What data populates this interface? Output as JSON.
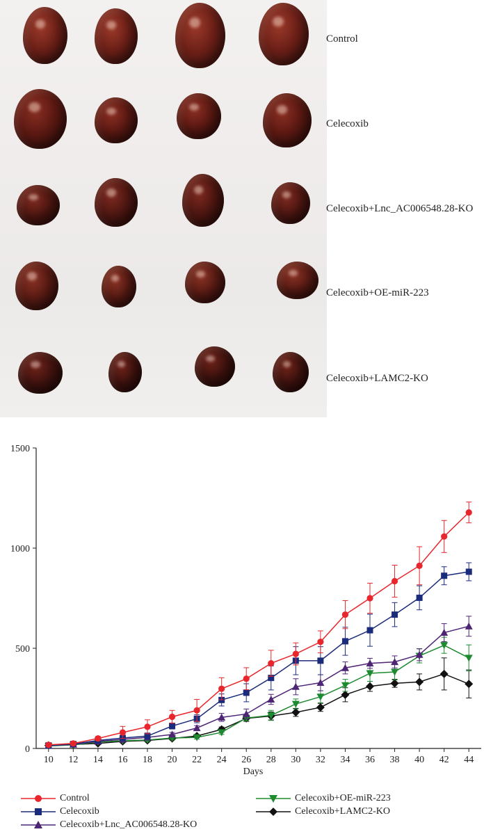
{
  "photo": {
    "groups": [
      {
        "label": "Control"
      },
      {
        "label": "Celecoxib"
      },
      {
        "label": "Celecoxib+Lnc_AC006548.28-KO"
      },
      {
        "label": "Celecoxib+OE-miR-223"
      },
      {
        "label": "Celecoxib+LAMC2-KO"
      }
    ]
  },
  "chart_data": {
    "type": "line",
    "title": "",
    "xlabel": "Days",
    "ylabel": "",
    "x": [
      10,
      12,
      14,
      16,
      18,
      20,
      22,
      24,
      26,
      28,
      30,
      32,
      34,
      36,
      38,
      40,
      42,
      44
    ],
    "xlim": [
      9,
      45
    ],
    "ylim": [
      0,
      1500
    ],
    "yticks": [
      0,
      500,
      1000,
      1500
    ],
    "grid": false,
    "legend_position": "bottom",
    "series": [
      {
        "name": "Control",
        "color": "#e8262b",
        "marker": "circle",
        "values": [
          18,
          25,
          50,
          80,
          108,
          158,
          190,
          298,
          348,
          425,
          472,
          532,
          668,
          750,
          835,
          912,
          1058,
          1178
        ],
        "errors": [
          6,
          6,
          10,
          30,
          35,
          32,
          55,
          55,
          55,
          65,
          55,
          55,
          70,
          75,
          80,
          95,
          80,
          52
        ]
      },
      {
        "name": "Celecoxib",
        "color": "#1a2b7c",
        "marker": "square",
        "values": [
          15,
          22,
          40,
          52,
          62,
          112,
          148,
          242,
          278,
          352,
          438,
          438,
          535,
          590,
          668,
          752,
          862,
          882
        ],
        "errors": [
          5,
          5,
          8,
          10,
          15,
          15,
          20,
          30,
          45,
          60,
          70,
          70,
          70,
          80,
          60,
          60,
          45,
          45
        ]
      },
      {
        "name": "Celecoxib+Lnc_AC006548.28-KO",
        "color": "#4e2475",
        "marker": "triangle-up",
        "values": [
          14,
          20,
          35,
          45,
          55,
          70,
          102,
          155,
          172,
          245,
          308,
          328,
          402,
          425,
          432,
          468,
          578,
          610
        ],
        "errors": [
          4,
          4,
          6,
          8,
          8,
          10,
          12,
          20,
          25,
          25,
          40,
          40,
          30,
          25,
          30,
          30,
          45,
          50
        ]
      },
      {
        "name": "Celecoxib+OE-miR-223",
        "color": "#1e8a2f",
        "marker": "triangle-down",
        "values": [
          12,
          18,
          32,
          38,
          42,
          52,
          55,
          80,
          152,
          165,
          222,
          258,
          315,
          375,
          382,
          462,
          515,
          452
        ],
        "errors": [
          4,
          4,
          5,
          6,
          6,
          8,
          8,
          10,
          15,
          25,
          25,
          30,
          30,
          40,
          40,
          35,
          40,
          65
        ]
      },
      {
        "name": "Celecoxib+LAMC2-KO",
        "color": "#111111",
        "marker": "diamond",
        "values": [
          15,
          20,
          25,
          35,
          40,
          50,
          62,
          95,
          150,
          162,
          180,
          205,
          268,
          310,
          325,
          332,
          372,
          322
        ],
        "errors": [
          4,
          4,
          5,
          6,
          6,
          8,
          8,
          12,
          15,
          20,
          20,
          20,
          35,
          25,
          20,
          40,
          80,
          70
        ]
      }
    ]
  }
}
